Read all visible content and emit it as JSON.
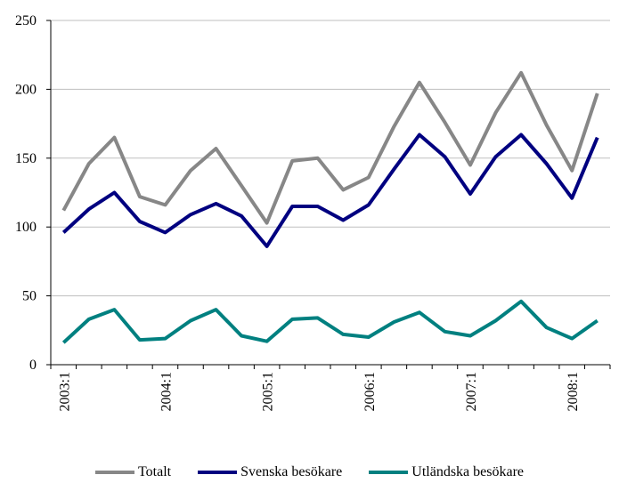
{
  "chart_data": {
    "type": "line",
    "title": "",
    "xlabel": "",
    "ylabel": "",
    "ylim": [
      0,
      250
    ],
    "yticks": [
      0,
      50,
      100,
      150,
      200,
      250
    ],
    "x": [
      "2003:1",
      "2003:2",
      "2003:3",
      "2003:4",
      "2004:1",
      "2004:2",
      "2004:3",
      "2004:4",
      "2005:1",
      "2005:2",
      "2005:3",
      "2005:4",
      "2006:1",
      "2006:2",
      "2006:3",
      "2006:4",
      "2007:1",
      "2007:2",
      "2007:3",
      "2007:4",
      "2008:1",
      "2008:2"
    ],
    "xtick_labels": [
      "2003:1",
      "2004:1",
      "2005:1",
      "2006:1",
      "2007:1",
      "2008:1"
    ],
    "grid": "horizontal",
    "legend_position": "bottom",
    "series": [
      {
        "name": "Totalt",
        "color": "#878787",
        "values": [
          112,
          146,
          165,
          122,
          116,
          141,
          157,
          130,
          103,
          148,
          150,
          127,
          136,
          173,
          205,
          176,
          145,
          183,
          212,
          174,
          141,
          197
        ]
      },
      {
        "name": "Svenska besökare",
        "color": "#000080",
        "values": [
          96,
          113,
          125,
          104,
          96,
          109,
          117,
          108,
          86,
          115,
          115,
          105,
          116,
          142,
          167,
          151,
          124,
          151,
          167,
          146,
          121,
          165
        ]
      },
      {
        "name": "Utländska besökare",
        "color": "#008080",
        "values": [
          16,
          33,
          40,
          18,
          19,
          32,
          40,
          21,
          17,
          33,
          34,
          22,
          20,
          31,
          38,
          24,
          21,
          32,
          46,
          27,
          19,
          32
        ]
      }
    ]
  }
}
